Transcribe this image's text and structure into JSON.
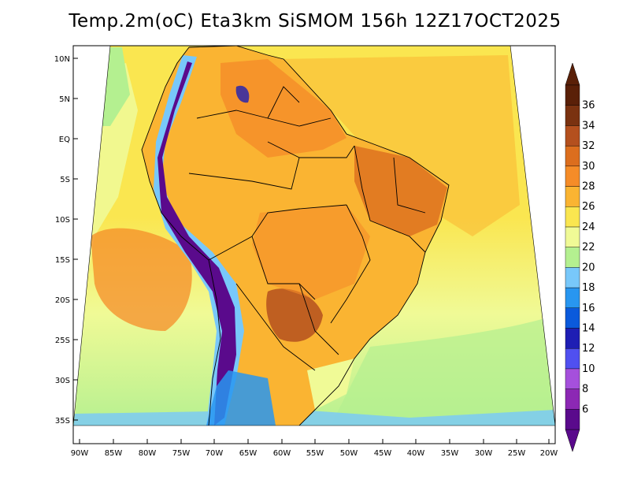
{
  "title": "Temp.2m(oC) Eta3km SiSMOM 156h 12Z17OCT2025",
  "lat_labels": [
    "10N",
    "5N",
    "EQ",
    "5S",
    "10S",
    "15S",
    "20S",
    "25S",
    "30S",
    "35S"
  ],
  "lon_labels": [
    "90W",
    "85W",
    "80W",
    "75W",
    "70W",
    "65W",
    "60W",
    "55W",
    "50W",
    "45W",
    "40W",
    "35W",
    "30W",
    "25W",
    "20W"
  ],
  "colorbar": {
    "labels": [
      "6",
      "8",
      "10",
      "12",
      "14",
      "16",
      "18",
      "20",
      "22",
      "24",
      "26",
      "28",
      "30",
      "32",
      "34",
      "36"
    ],
    "colors": [
      "#5a0a8c",
      "#8c28b4",
      "#a550dc",
      "#5050f0",
      "#1e1eb4",
      "#0a5adc",
      "#2896f0",
      "#78c8fa",
      "#b4f090",
      "#f0fa96",
      "#fae650",
      "#fab432",
      "#f58c28",
      "#dc6e1e",
      "#b4501e",
      "#7a3210",
      "#5a2008"
    ],
    "min_arrow_color": "#5a0a8c",
    "max_arrow_color": "#5a2008"
  },
  "palette": {
    "ocean_north": "#fae650",
    "ocean_south": "#b4f090",
    "land_hot": "#f58c28",
    "land_warm": "#fab432",
    "andes": "#5a0a8c",
    "border": "#000000"
  }
}
